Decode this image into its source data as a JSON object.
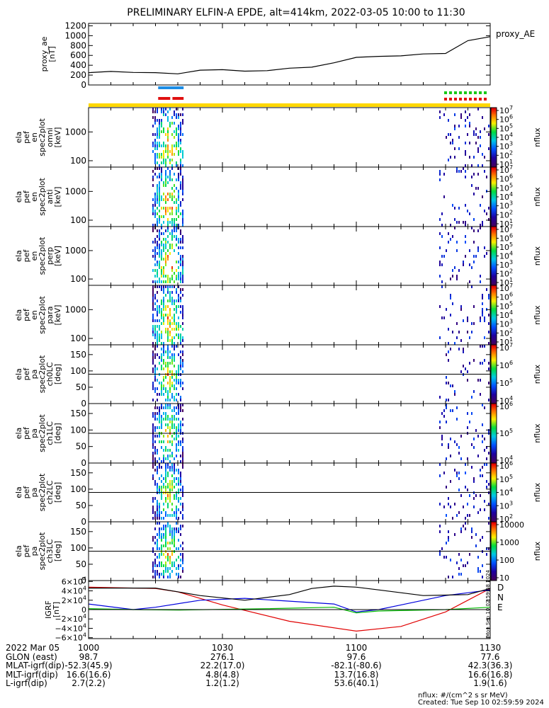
{
  "chart_data": {
    "type": "heatmap",
    "title": "PRELIMINARY ELFIN-A EPDE, alt=414km, 2022-03-05 10:00 to 11:30",
    "x_ticks": [
      "1000",
      "1030",
      "1100",
      "1130"
    ],
    "x_range": [
      "10:00",
      "11:30"
    ],
    "panels": [
      {
        "kind": "line",
        "ylabel": [
          "proxy_ae",
          "[nT]"
        ],
        "yticks": [
          "0",
          "200",
          "400",
          "600",
          "800",
          "1000",
          "1200"
        ],
        "ylim": [
          0,
          1250
        ],
        "legend": "proxy_AE",
        "series": [
          {
            "t": [
              0,
              5,
              10,
              15,
              20,
              25,
              30,
              35,
              40,
              45,
              50,
              55,
              60,
              65,
              70,
              75,
              80,
              85,
              90
            ],
            "v": [
              250,
              275,
              255,
              250,
              225,
              300,
              310,
              280,
              290,
              340,
              360,
              450,
              560,
              580,
              590,
              630,
              640,
              900,
              980
            ]
          }
        ]
      },
      {
        "kind": "spec",
        "ylabel": [
          "ela",
          "pef",
          "en",
          "spec2plot",
          "omni",
          "[keV]"
        ],
        "yticks": [
          "100",
          "1000"
        ],
        "ylim": [
          60,
          7000
        ],
        "log": true,
        "cbar_ticks": [
          "10^1",
          "10^2",
          "10^3",
          "10^4",
          "10^5",
          "10^6",
          "10^7"
        ],
        "cbar_label": "nflux"
      },
      {
        "kind": "spec",
        "ylabel": [
          "ela",
          "pef",
          "en",
          "spec2plot",
          "anti",
          "[keV]"
        ],
        "yticks": [
          "100",
          "1000"
        ],
        "ylim": [
          60,
          7000
        ],
        "log": true,
        "cbar_ticks": [
          "10^1",
          "10^2",
          "10^3",
          "10^4",
          "10^5",
          "10^6",
          "10^7"
        ],
        "cbar_label": "nflux"
      },
      {
        "kind": "spec",
        "ylabel": [
          "ela",
          "pef",
          "en",
          "spec2plot",
          "perp",
          "[keV]"
        ],
        "yticks": [
          "100",
          "1000"
        ],
        "ylim": [
          60,
          7000
        ],
        "log": true,
        "cbar_ticks": [
          "10^1",
          "10^2",
          "10^3",
          "10^4",
          "10^5",
          "10^6",
          "10^7"
        ],
        "cbar_label": "nflux"
      },
      {
        "kind": "spec",
        "ylabel": [
          "ela",
          "pef",
          "en",
          "spec2plot",
          "para",
          "[keV]"
        ],
        "yticks": [
          "100",
          "1000"
        ],
        "ylim": [
          60,
          7000
        ],
        "log": true,
        "cbar_ticks": [
          "10^1",
          "10^2",
          "10^3",
          "10^4",
          "10^5",
          "10^6",
          "10^7"
        ],
        "cbar_label": "nflux"
      },
      {
        "kind": "spec",
        "ylabel": [
          "ela",
          "pef",
          "pa",
          "spec2plot",
          "ch0LC",
          "[deg]"
        ],
        "yticks": [
          "0",
          "50",
          "100",
          "150"
        ],
        "ylim": [
          0,
          180
        ],
        "cbar_ticks": [
          "10^4",
          "10^5",
          "10^6",
          "10^7"
        ],
        "cbar_label": "nflux"
      },
      {
        "kind": "spec",
        "ylabel": [
          "ela",
          "pef",
          "pa",
          "spec2plot",
          "ch1LC",
          "[deg]"
        ],
        "yticks": [
          "0",
          "50",
          "100",
          "150"
        ],
        "ylim": [
          0,
          180
        ],
        "cbar_ticks": [
          "10^4",
          "10^5",
          "10^6"
        ],
        "cbar_label": "nflux"
      },
      {
        "kind": "spec",
        "ylabel": [
          "ela",
          "pef",
          "pa",
          "spec2plot",
          "ch2LC",
          "[deg]"
        ],
        "yticks": [
          "0",
          "50",
          "100",
          "150"
        ],
        "ylim": [
          0,
          180
        ],
        "cbar_ticks": [
          "10^2",
          "10^3",
          "10^4",
          "10^5",
          "10^6"
        ],
        "cbar_label": "nflux"
      },
      {
        "kind": "spec",
        "ylabel": [
          "ela",
          "pef",
          "pa",
          "spec2plot",
          "ch3LC",
          "[deg]"
        ],
        "yticks": [
          "0",
          "50",
          "100",
          "150"
        ],
        "ylim": [
          0,
          180
        ],
        "cbar_ticks": [
          "10",
          "100",
          "1000",
          "10000"
        ],
        "cbar_label": "nflux"
      },
      {
        "kind": "line",
        "ylabel": [
          "IGRF",
          "[nT]"
        ],
        "yticks": [
          "−6×10^4",
          "−4×10^4",
          "−2×10^4",
          "0",
          "2×10^4",
          "4×10^4",
          "6×10^4"
        ],
        "ylim": [
          -62000,
          62000
        ],
        "series": [
          {
            "name": "D",
            "color": "#e00000",
            "t": [
              0,
              15,
              20,
              30,
              45,
              60,
              70,
              80,
              90
            ],
            "v": [
              48000,
              45000,
              38000,
              10000,
              -25000,
              -46000,
              -36000,
              -5000,
              45000
            ]
          },
          {
            "name": "N",
            "color": "#0000dd",
            "t": [
              0,
              10,
              15,
              25,
              35,
              55,
              60,
              65,
              70,
              80,
              90
            ],
            "v": [
              12000,
              0,
              5000,
              20000,
              24000,
              12000,
              -5000,
              0,
              10000,
              30000,
              42000
            ]
          },
          {
            "name": "E",
            "color": "#00bb00",
            "t": [
              0,
              10,
              20,
              40,
              55,
              60,
              65,
              80,
              90
            ],
            "v": [
              2000,
              0,
              -1000,
              2000,
              5000,
              -7000,
              -3000,
              0,
              5000
            ]
          },
          {
            "name": "",
            "color": "#000000",
            "t": [
              0,
              15,
              25,
              35,
              45,
              50,
              55,
              60,
              65,
              75,
              85,
              90
            ],
            "v": [
              46000,
              46000,
              30000,
              20000,
              32000,
              45000,
              50000,
              48000,
              42000,
              30000,
              32000,
              45000
            ]
          }
        ]
      }
    ],
    "flags": {
      "colors": {
        "yellow": "#ffd800",
        "blue": "#1c8de6",
        "red": "#e01010",
        "green": "#19c819"
      }
    },
    "side_text": "Mon Sep 10 02:59:58 2024"
  },
  "footer": {
    "rows": [
      {
        "label": "2022 Mar 05",
        "values": [
          "1000",
          "1030",
          "1100",
          "1130"
        ]
      },
      {
        "label": "GLON (east)",
        "values": [
          "98.7",
          "276.1",
          "97.6",
          "77.6"
        ]
      },
      {
        "label": "MLAT-igrf(dip)",
        "values": [
          "-52.3(45.9)",
          "22.2(17.0)",
          "-82.1(-80.6)",
          "42.3(36.3)"
        ]
      },
      {
        "label": "MLT-igrf(dip)",
        "values": [
          "16.6(16.6)",
          "4.8(4.8)",
          "13.7(16.8)",
          "16.6(16.8)"
        ]
      },
      {
        "label": "L-igrf(dip)",
        "values": [
          "2.7(2.2)",
          "1.2(1.2)",
          "53.6(40.1)",
          "1.9(1.6)"
        ]
      }
    ],
    "note_units": "nflux: #/(cm^2 s sr MeV)",
    "note_created": "Created: Tue Sep 10 02:59:59 2024"
  }
}
